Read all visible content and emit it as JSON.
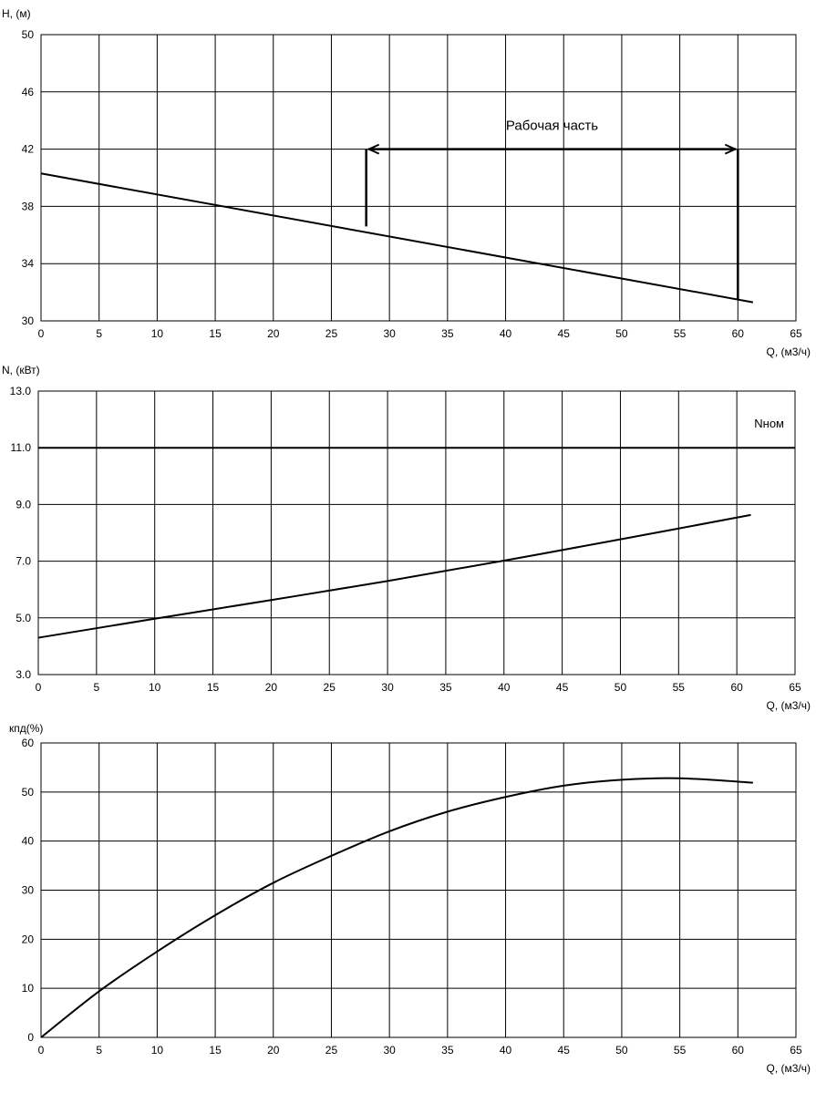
{
  "chart_data": [
    {
      "type": "line",
      "ylabel": "H, (м)",
      "xlabel": "Q, (м3/ч)",
      "xlim": [
        0,
        65
      ],
      "ylim": [
        30,
        50
      ],
      "x_ticks": [
        "0",
        "5",
        "10",
        "15",
        "20",
        "25",
        "30",
        "35",
        "40",
        "45",
        "50",
        "55",
        "60",
        "65"
      ],
      "y_ticks": [
        "30",
        "34",
        "38",
        "42",
        "46",
        "50"
      ],
      "grid": true,
      "series": [
        {
          "x": [
            0,
            61.3
          ],
          "y": [
            40.3,
            31.3
          ]
        }
      ],
      "annotation": {
        "text": "Рабочая часть",
        "x_from": 28,
        "x_to": 60,
        "y": 42,
        "left_bottom": 36.6,
        "right_bottom": 31.5
      }
    },
    {
      "type": "line",
      "ylabel": "N, (кВт)",
      "xlabel": "Q, (м3/ч)",
      "xlim": [
        0,
        65
      ],
      "ylim": [
        3,
        13
      ],
      "x_ticks": [
        "0",
        "5",
        "10",
        "15",
        "20",
        "25",
        "30",
        "35",
        "40",
        "45",
        "50",
        "55",
        "60",
        "65"
      ],
      "y_ticks": [
        "3.0",
        "5.0",
        "7.0",
        "9.0",
        "11.0",
        "13.0"
      ],
      "grid": true,
      "series": [
        {
          "x": [
            0,
            10,
            20,
            30,
            40,
            50,
            61.2
          ],
          "y": [
            4.3,
            4.97,
            5.63,
            6.3,
            7.02,
            7.77,
            8.63
          ]
        }
      ],
      "reference": {
        "label": "Nном",
        "value": 11
      }
    },
    {
      "type": "line",
      "ylabel": "кпд(%)",
      "xlabel": "Q, (м3/ч)",
      "xlim": [
        0,
        65
      ],
      "ylim": [
        0,
        60
      ],
      "x_ticks": [
        "0",
        "5",
        "10",
        "15",
        "20",
        "25",
        "30",
        "35",
        "40",
        "45",
        "50",
        "55",
        "60",
        "65"
      ],
      "y_ticks": [
        "0",
        "10",
        "20",
        "30",
        "40",
        "50",
        "60"
      ],
      "grid": true,
      "series": [
        {
          "x": [
            0,
            5,
            10,
            15,
            20,
            25,
            30,
            35,
            40,
            45,
            50,
            55,
            61.3
          ],
          "y": [
            0,
            9.4,
            17.5,
            24.9,
            31.5,
            37.0,
            42.0,
            46.0,
            49.0,
            51.3,
            52.5,
            52.8,
            51.9
          ]
        }
      ]
    }
  ]
}
